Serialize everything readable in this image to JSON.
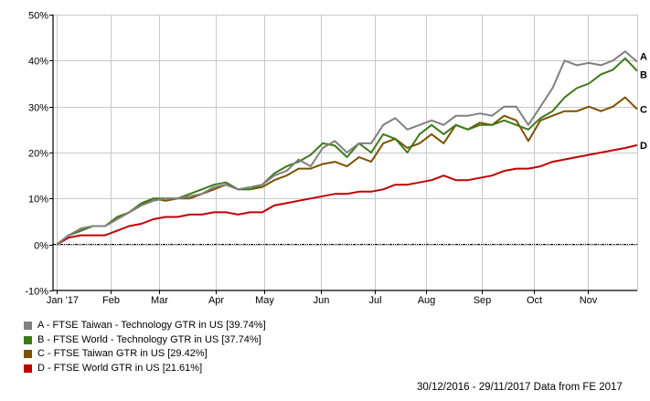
{
  "chart_data": {
    "type": "line",
    "title": "",
    "xlabel": "",
    "ylabel": "",
    "ylim": [
      -10,
      50
    ],
    "yticks": [
      "-10%",
      "0%",
      "10%",
      "20%",
      "30%",
      "40%",
      "50%"
    ],
    "ytick_values": [
      -10,
      0,
      10,
      20,
      30,
      40,
      50
    ],
    "xticks": [
      "Jan '17",
      "Feb",
      "Mar",
      "Apr",
      "May",
      "Jun",
      "Jul",
      "Aug",
      "Sep",
      "Oct",
      "Nov"
    ],
    "grid": true,
    "legend_position": "bottom-left",
    "x": [
      "30/12/2016",
      "06/01",
      "13/01",
      "20/01",
      "27/01",
      "03/02",
      "10/02",
      "17/02",
      "24/02",
      "03/03",
      "10/03",
      "17/03",
      "24/03",
      "31/03",
      "07/04",
      "14/04",
      "21/04",
      "28/04",
      "05/05",
      "12/05",
      "19/05",
      "26/05",
      "02/06",
      "09/06",
      "16/06",
      "23/06",
      "30/06",
      "07/07",
      "14/07",
      "21/07",
      "28/07",
      "04/08",
      "11/08",
      "18/08",
      "25/08",
      "01/09",
      "08/09",
      "15/09",
      "22/09",
      "29/09",
      "06/10",
      "13/10",
      "20/10",
      "27/10",
      "03/11",
      "10/11",
      "17/11",
      "24/11",
      "29/11/2017"
    ],
    "series": [
      {
        "name": "A - FTSE Taiwan - Technology GTR in US",
        "label": "A",
        "color": "#808080",
        "final": 39.74,
        "values": [
          0,
          2,
          3.5,
          4,
          4,
          5.5,
          7,
          8.5,
          9.5,
          10,
          10,
          10.5,
          11,
          12.5,
          13,
          12,
          12.5,
          13,
          15,
          16,
          18.5,
          17,
          21,
          22.5,
          20,
          22,
          22,
          26,
          27.5,
          25,
          26,
          27,
          26,
          28,
          28,
          28.5,
          28,
          30,
          30,
          26,
          30,
          34,
          40,
          39,
          39.5,
          39,
          40,
          42,
          39.74
        ]
      },
      {
        "name": "B - FTSE World - Technology GTR in US",
        "label": "B",
        "color": "#3d7a1a",
        "final": 37.74,
        "values": [
          0,
          2,
          3,
          4,
          4,
          6,
          7,
          9,
          10,
          10,
          10,
          11,
          12,
          13,
          13.5,
          12,
          12,
          13,
          15.5,
          17,
          18,
          19.5,
          22,
          21.5,
          19,
          22,
          20,
          24,
          23,
          20,
          24,
          26,
          24,
          26,
          25,
          26,
          26,
          27,
          26,
          25,
          27.5,
          29,
          32,
          34,
          35,
          37,
          38,
          40.5,
          37.74
        ]
      },
      {
        "name": "C - FTSE Taiwan GTR in US",
        "label": "C",
        "color": "#7a5200",
        "final": 29.42,
        "values": [
          0,
          2,
          3,
          4,
          4,
          5.5,
          7,
          8.5,
          10,
          9.5,
          10,
          10,
          11,
          12,
          13,
          12,
          12,
          12.5,
          14,
          15,
          16.5,
          16.5,
          17.5,
          18,
          17,
          19,
          18,
          22,
          23,
          21,
          22,
          24,
          22,
          26,
          25,
          26.5,
          26,
          28,
          27,
          22.5,
          27,
          28,
          29,
          29,
          30,
          29,
          30,
          32,
          29.42
        ]
      },
      {
        "name": "D - FTSE World GTR in US",
        "label": "D",
        "color": "#c00000",
        "final": 21.61,
        "values": [
          0,
          1.5,
          2,
          2,
          2,
          3,
          4,
          4.5,
          5.5,
          6,
          6,
          6.5,
          6.5,
          7,
          7,
          6.5,
          7,
          7,
          8.5,
          9,
          9.5,
          10,
          10.5,
          11,
          11,
          11.5,
          11.5,
          12,
          13,
          13,
          13.5,
          14,
          15,
          14,
          14,
          14.5,
          15,
          16,
          16.5,
          16.5,
          17,
          18,
          18.5,
          19,
          19.5,
          20,
          20.5,
          21,
          21.61
        ]
      }
    ]
  },
  "legend": {
    "items": [
      {
        "text": "A - FTSE Taiwan - Technology GTR in US [39.74%]",
        "color": "#808080"
      },
      {
        "text": "B - FTSE World - Technology GTR in US [37.74%]",
        "color": "#3d7a1a"
      },
      {
        "text": "C - FTSE Taiwan GTR in US [29.42%]",
        "color": "#7a5200"
      },
      {
        "text": "D - FTSE World GTR in US [21.61%]",
        "color": "#c00000"
      }
    ]
  },
  "footer": {
    "text": "30/12/2016 - 29/11/2017 Data from FE 2017"
  }
}
